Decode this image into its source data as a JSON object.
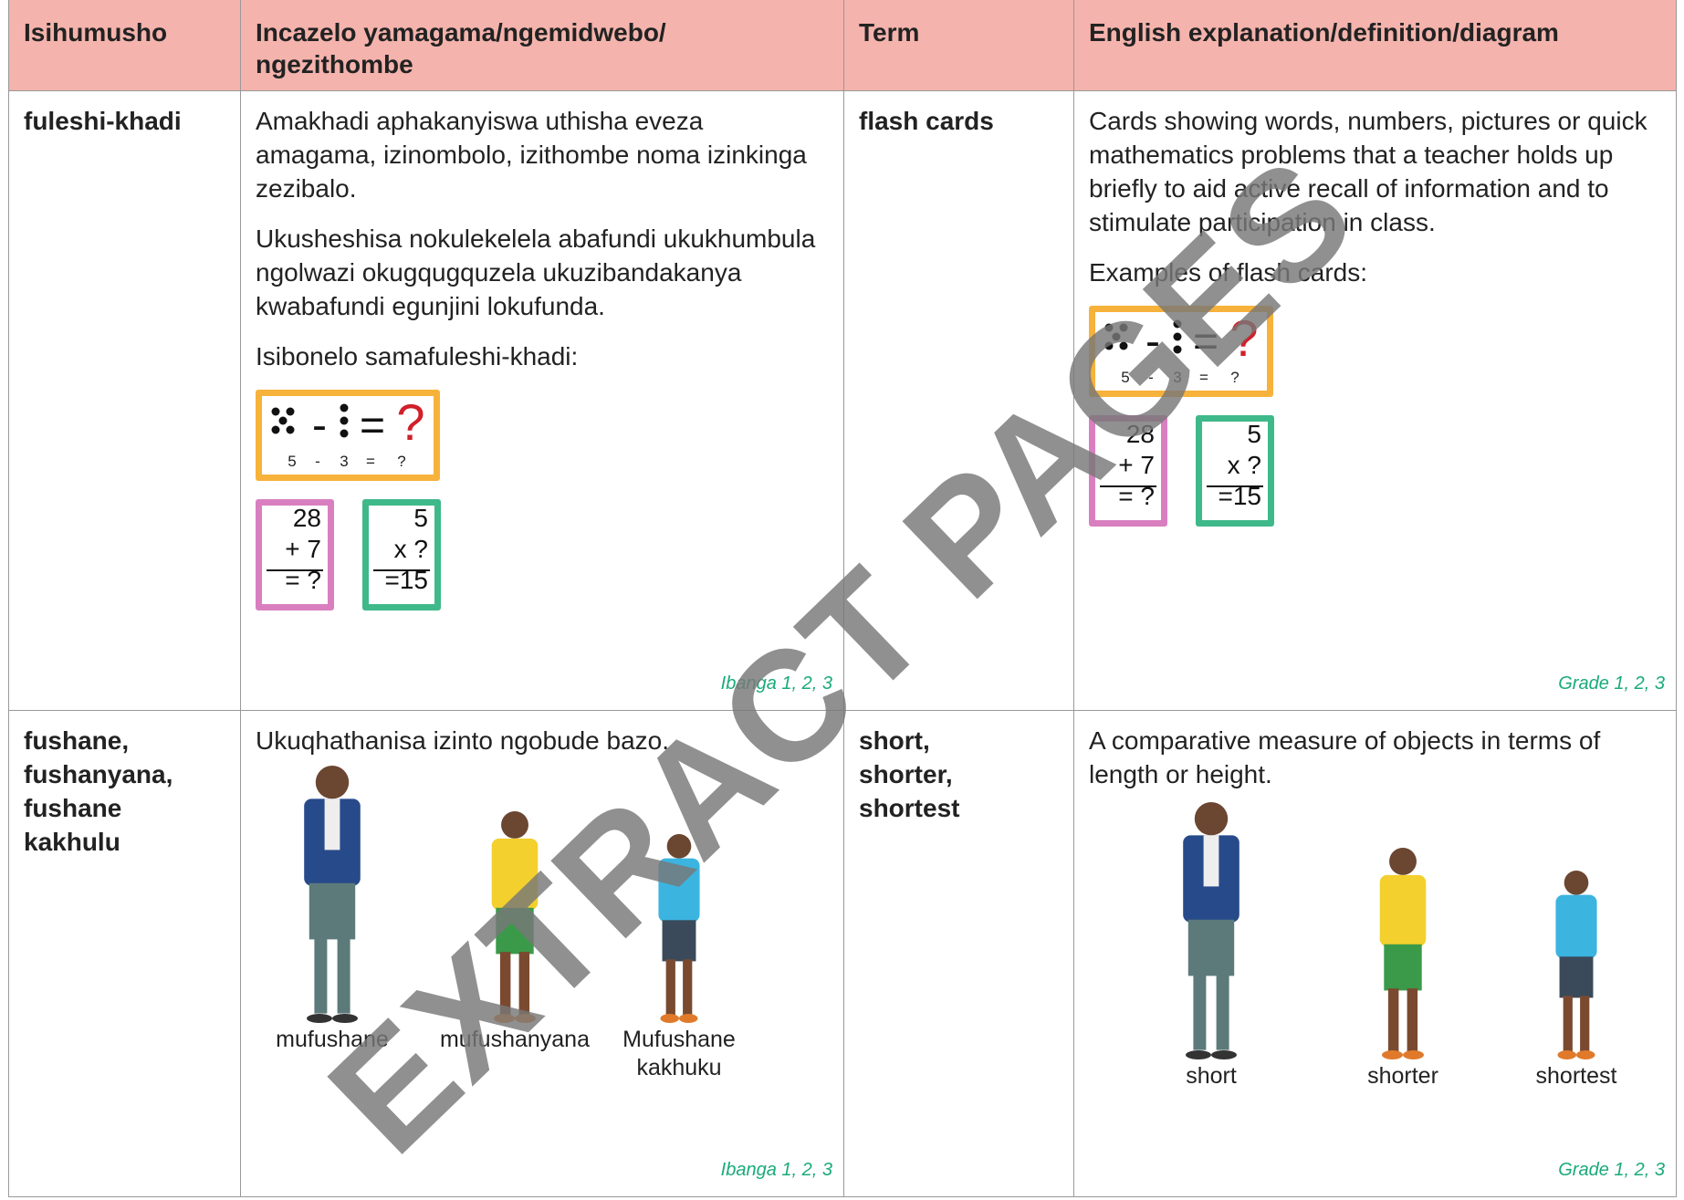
{
  "header": {
    "cells": [
      "Isihumusho",
      "Incazelo yamagama/ngemidwebo/ ngezithombe",
      "Term",
      "English explanation/definition/diagram"
    ]
  },
  "rows": [
    {
      "term_zu": [
        "fuleshi-khadi"
      ],
      "explanation_zu": [
        "Amakhadi aphakanyiswa uthisha eveza amagama, izinombolo, izithombe noma izinkinga zezibalo.",
        "Ukusheshisa nokulekelela abafundi ukukhumbula ngolwazi okugqugquzela ukuzibandakanya kwabafundi egunjini lokufunda.",
        "Isibonelo samafuleshi-khadi:"
      ],
      "cards_zu": {
        "symbols": [
          "-",
          "=",
          "?"
        ],
        "caption": [
          "5",
          "-",
          "3",
          "=",
          "?"
        ],
        "addition": [
          "28",
          "+ 7",
          "= ?"
        ],
        "multiplication": [
          "5",
          "x ?",
          "=15"
        ]
      },
      "grade_zu": "Ibanga 1, 2, 3",
      "term_en": [
        "flash cards"
      ],
      "explanation_en": [
        "Cards showing words, numbers, pictures or quick mathematics problems that a teacher holds up briefly to aid active recall of information and to stimulate participation in class.",
        "Examples of flash cards:"
      ],
      "cards_en": {
        "symbols": [
          "-",
          "=",
          "?"
        ],
        "caption": [
          "5",
          "-",
          "3",
          "=",
          "?"
        ],
        "addition": [
          "28",
          "+ 7",
          "= ?"
        ],
        "multiplication": [
          "5",
          "x ?",
          "=15"
        ]
      },
      "grade_en": "Grade 1, 2, 3"
    },
    {
      "term_zu": [
        "fushane,",
        "fushanyana,",
        "fushane",
        "kakhulu"
      ],
      "explanation_zu": [
        "Ukuqhathanisa izinto ngobude bazo."
      ],
      "figures_zu": [
        "mufushane",
        "mufushanyana",
        "Mufushane kakhuku"
      ],
      "grade_zu": "Ibanga 1, 2, 3",
      "term_en": [
        "short,",
        "shorter,",
        "shortest"
      ],
      "explanation_en": [
        "A comparative measure of objects in terms of length or height."
      ],
      "figures_en": [
        "short",
        "shorter",
        "shortest"
      ],
      "grade_en": "Grade 1, 2, 3"
    }
  ],
  "watermark": "EXTRACT PAGES"
}
